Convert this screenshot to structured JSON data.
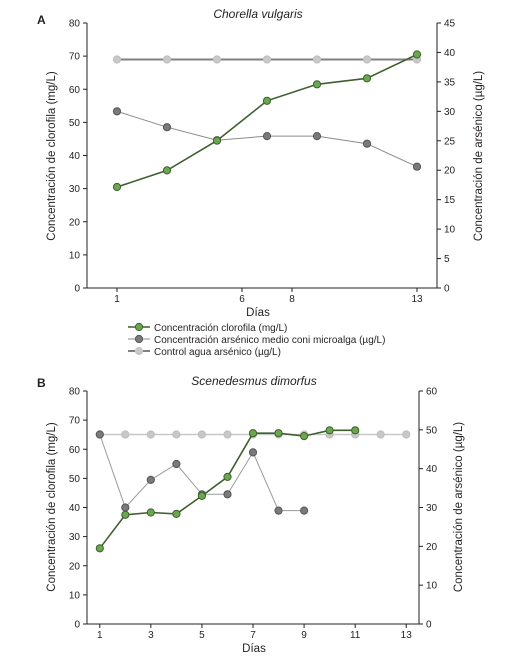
{
  "chart_data": [
    {
      "panel_label": "A",
      "type": "line",
      "title": "Chorella vulgaris",
      "xlabel": "Días",
      "ylabel_left": "Concentración de clorofila (mg/L)",
      "ylabel_right": "Concentración de arsénico (µg/L)",
      "ylim_left": [
        0,
        80
      ],
      "ylim_right": [
        0,
        45
      ],
      "yticks_left": [
        0,
        10,
        20,
        30,
        40,
        50,
        60,
        70,
        80
      ],
      "yticks_right": [
        0,
        5,
        10,
        15,
        20,
        25,
        30,
        35,
        40,
        45
      ],
      "xlim": [
        -0.2,
        13.8
      ],
      "xticks": [
        1,
        6,
        8,
        13
      ],
      "grid": false,
      "legend_position": "bottom",
      "series": [
        {
          "name": "Concentración clorofila (mg/L)",
          "axis": "left",
          "color": "#6aa84f",
          "line_color": "#3f5f2e",
          "line_width": 1.6,
          "x": [
            0,
            2.5,
            5,
            7.5,
            10,
            12.5,
            15
          ],
          "y": [
            30.5,
            35.5,
            44.5,
            56.5,
            61.5,
            63.3,
            70.5
          ]
        },
        {
          "name": "Concentración arsénico medio coni microalga (µg/L)",
          "axis": "right",
          "color": "#7a7a7a",
          "line_color": "#8a8a8a",
          "line_width": 1,
          "x": [
            0,
            2.5,
            5,
            7.5,
            10,
            12.5,
            15
          ],
          "y": [
            30,
            27.3,
            25.1,
            25.8,
            25.8,
            24.5,
            20.6
          ]
        },
        {
          "name": "Control agua arsénico (µg/L)",
          "axis": "right",
          "color": "#c8c8c8",
          "line_color": "#808080",
          "line_width": 2,
          "x": [
            0,
            2.5,
            5,
            7.5,
            10,
            12.5,
            15
          ],
          "y": [
            38.8,
            38.8,
            38.8,
            38.8,
            38.8,
            38.8,
            38.8
          ]
        }
      ]
    },
    {
      "panel_label": "B",
      "type": "line",
      "title": "Scenedesmus dimorfus",
      "xlabel": "Días",
      "ylabel_left": "Concentración de clorofila (mg/L)",
      "ylabel_right": "Concentración de arsénico (µg/L)",
      "ylim_left": [
        0,
        80
      ],
      "ylim_right": [
        0,
        60
      ],
      "yticks_left": [
        0,
        10,
        20,
        30,
        40,
        50,
        60,
        70,
        80
      ],
      "yticks_right": [
        0,
        10,
        20,
        30,
        40,
        50,
        60
      ],
      "xlim": [
        0.5,
        13.5
      ],
      "xticks": [
        1,
        3,
        5,
        7,
        9,
        11,
        13
      ],
      "grid": false,
      "series": [
        {
          "name": "Concentración clorofila",
          "axis": "left",
          "color": "#6aa84f",
          "line_color": "#3f5f2e",
          "line_width": 1.6,
          "x": [
            1,
            2,
            3,
            4,
            5,
            6,
            7,
            8,
            9,
            10,
            11
          ],
          "y": [
            26,
            37.5,
            38.3,
            37.8,
            44,
            50.5,
            65.5,
            65.5,
            64.5,
            66.5,
            66.5
          ]
        },
        {
          "name": "Concentración arsénico medio con microalga",
          "axis": "right",
          "color": "#7a7a7a",
          "line_color": "#9a9a9a",
          "line_width": 1,
          "x": [
            1,
            2,
            3,
            4,
            5,
            6,
            7,
            8,
            9
          ],
          "y": [
            48.8,
            30,
            37.1,
            41.2,
            33.4,
            33.4,
            44.2,
            29.2,
            29.2
          ]
        },
        {
          "name": "Control agua arsénico",
          "axis": "right",
          "color": "#c8c8c8",
          "line_color": "#c8c8c8",
          "line_width": 1.5,
          "x": [
            1,
            2,
            3,
            4,
            5,
            6,
            7,
            8,
            9,
            10,
            11,
            12,
            13
          ],
          "y": [
            48.8,
            48.8,
            48.8,
            48.8,
            48.8,
            48.8,
            48.8,
            48.8,
            48.8,
            48.8,
            48.8,
            48.8,
            48.8
          ]
        }
      ]
    }
  ]
}
